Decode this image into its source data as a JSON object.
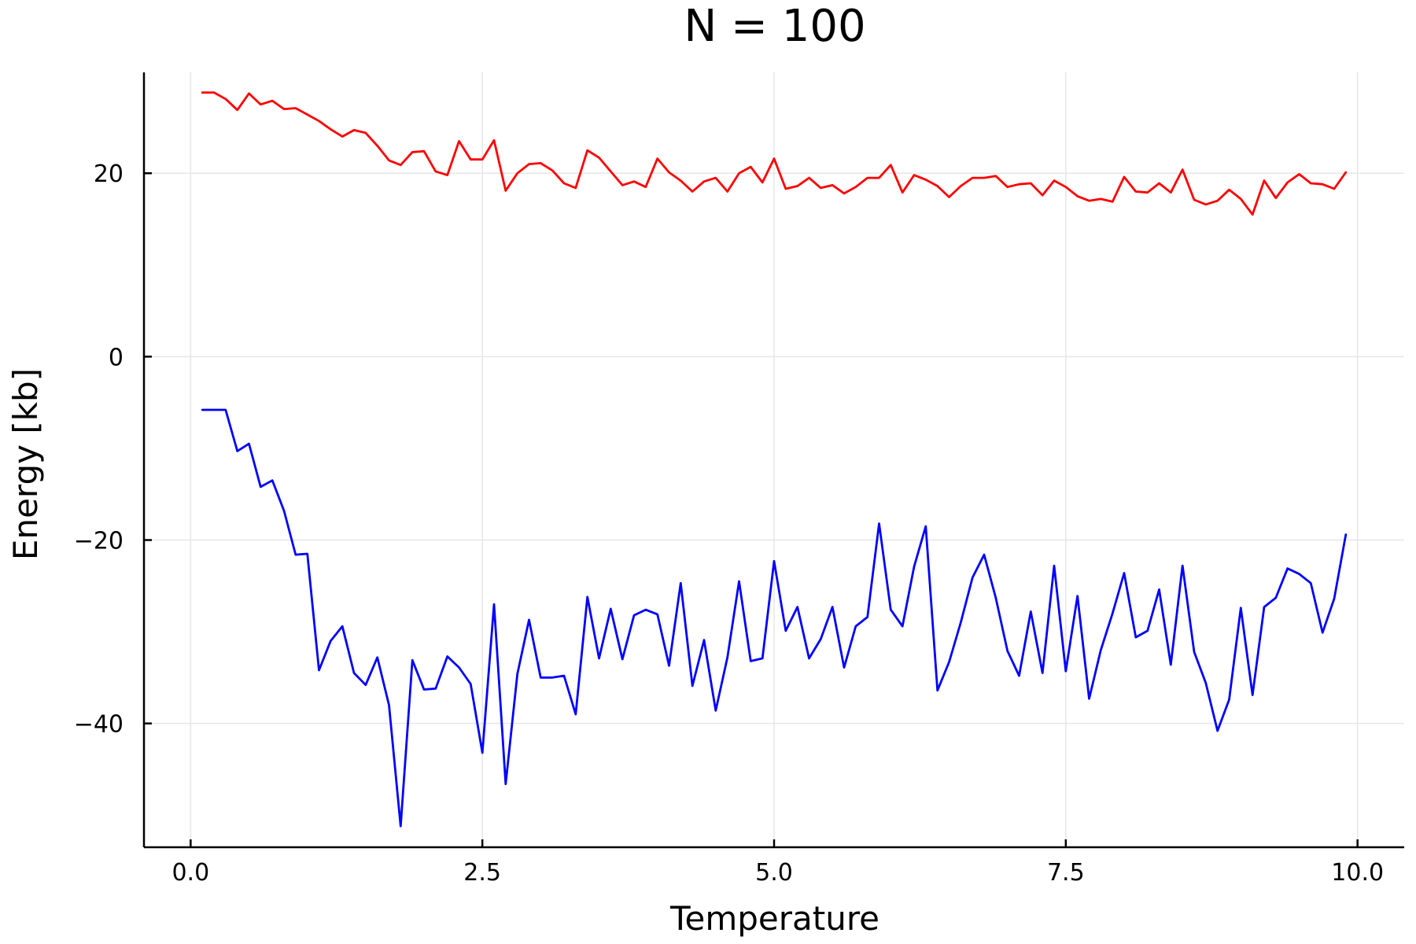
{
  "chart_data": {
    "type": "line",
    "title": "N = 100",
    "xlabel": "Temperature",
    "ylabel": "Energy [kb]",
    "xlim": [
      -0.4,
      10.4
    ],
    "ylim": [
      -53.5,
      31
    ],
    "xticks": [
      0.0,
      2.5,
      5.0,
      7.5,
      10.0
    ],
    "xtick_labels": [
      "0.0",
      "2.5",
      "5.0",
      "7.5",
      "10.0"
    ],
    "yticks": [
      -40,
      -20,
      0,
      20
    ],
    "ytick_labels": [
      "−40",
      "−20",
      "0",
      "20"
    ],
    "grid": true,
    "legend": "none",
    "x": [
      0.1,
      0.2,
      0.3,
      0.4,
      0.5,
      0.6,
      0.7,
      0.8,
      0.9,
      1.0,
      1.1,
      1.2,
      1.3,
      1.4,
      1.5,
      1.6,
      1.7,
      1.8,
      1.9,
      2.0,
      2.1,
      2.2,
      2.3,
      2.4,
      2.5,
      2.6,
      2.7,
      2.8,
      2.9,
      3.0,
      3.1,
      3.2,
      3.3,
      3.4,
      3.5,
      3.6,
      3.7,
      3.8,
      3.9,
      4.0,
      4.1,
      4.2,
      4.3,
      4.4,
      4.5,
      4.6,
      4.7,
      4.8,
      4.9,
      5.0,
      5.1,
      5.2,
      5.3,
      5.4,
      5.5,
      5.6,
      5.7,
      5.8,
      5.9,
      6.0,
      6.1,
      6.2,
      6.3,
      6.4,
      6.5,
      6.6,
      6.7,
      6.8,
      6.9,
      7.0,
      7.1,
      7.2,
      7.3,
      7.4,
      7.5,
      7.6,
      7.7,
      7.8,
      7.9,
      8.0,
      8.1,
      8.2,
      8.3,
      8.4,
      8.5,
      8.6,
      8.7,
      8.8,
      8.9,
      9.0,
      9.1,
      9.2,
      9.3,
      9.4,
      9.5,
      9.6,
      9.7,
      9.8,
      9.9
    ],
    "series": [
      {
        "color": "#ff0000",
        "values": [
          28.8,
          28.8,
          28.1,
          26.9,
          28.7,
          27.5,
          27.9,
          27.0,
          27.1,
          26.4,
          25.7,
          24.8,
          24.0,
          24.7,
          24.4,
          23.0,
          21.4,
          20.9,
          22.3,
          22.4,
          20.2,
          19.8,
          23.5,
          21.5,
          21.5,
          23.6,
          18.1,
          20.0,
          21.0,
          21.1,
          20.3,
          18.9,
          18.4,
          22.5,
          21.7,
          20.2,
          18.7,
          19.1,
          18.5,
          21.6,
          20.1,
          19.2,
          18.0,
          19.1,
          19.5,
          18.0,
          20.0,
          20.7,
          19.0,
          21.6,
          18.3,
          18.6,
          19.5,
          18.4,
          18.7,
          17.8,
          18.5,
          19.5,
          19.5,
          20.9,
          17.9,
          19.8,
          19.3,
          18.6,
          17.4,
          18.6,
          19.5,
          19.5,
          19.7,
          18.5,
          18.8,
          18.9,
          17.6,
          19.2,
          18.5,
          17.5,
          17.0,
          17.2,
          16.9,
          19.6,
          18.0,
          17.9,
          18.9,
          17.9,
          20.4,
          17.1,
          16.6,
          17.0,
          18.2,
          17.2,
          15.5,
          19.2,
          17.3,
          19.0,
          19.9,
          18.9,
          18.8,
          18.3,
          20.1
        ]
      },
      {
        "color": "#0000ff",
        "values": [
          -5.8,
          -5.8,
          -5.8,
          -10.3,
          -9.5,
          -14.2,
          -13.5,
          -16.8,
          -21.6,
          -21.5,
          -34.2,
          -31.0,
          -29.4,
          -34.5,
          -35.8,
          -32.8,
          -38.0,
          -51.2,
          -33.1,
          -36.3,
          -36.2,
          -32.7,
          -33.9,
          -35.7,
          -43.2,
          -27.0,
          -46.6,
          -34.6,
          -28.7,
          -35.0,
          -35.0,
          -34.8,
          -39.0,
          -26.2,
          -32.9,
          -27.5,
          -33.0,
          -28.2,
          -27.6,
          -28.1,
          -33.7,
          -24.7,
          -35.9,
          -30.9,
          -38.6,
          -32.8,
          -24.5,
          -33.2,
          -32.9,
          -22.3,
          -29.9,
          -27.3,
          -32.9,
          -30.8,
          -27.3,
          -33.9,
          -29.4,
          -28.4,
          -18.2,
          -27.6,
          -29.4,
          -22.9,
          -18.5,
          -36.4,
          -33.3,
          -29.0,
          -24.1,
          -21.6,
          -26.3,
          -32.1,
          -34.8,
          -27.8,
          -34.5,
          -22.8,
          -34.3,
          -26.1,
          -37.3,
          -32.0,
          -28.0,
          -23.6,
          -30.6,
          -29.9,
          -25.4,
          -33.6,
          -22.8,
          -32.2,
          -35.6,
          -40.8,
          -37.4,
          -27.4,
          -36.9,
          -27.3,
          -26.3,
          -23.1,
          -23.7,
          -24.7,
          -30.1,
          -26.4,
          -19.4
        ]
      }
    ]
  }
}
